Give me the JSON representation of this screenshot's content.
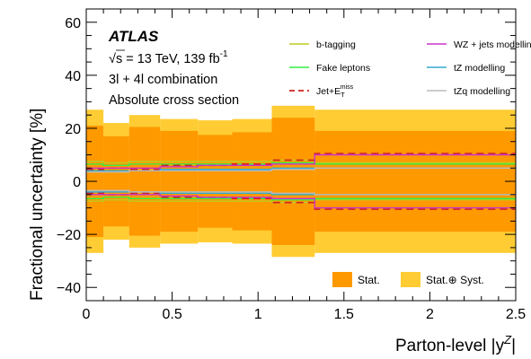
{
  "chart_data": {
    "type": "step",
    "experiment": "ATLAS",
    "energy_line": "√s = 13 TeV, 139 fb",
    "energy_sup": "-1",
    "subtitle_1": "3l + 4l combination",
    "subtitle_2": "Absolute cross section",
    "xlabel_main": "Parton-level |y",
    "xlabel_sup": "Z",
    "xlabel_end": "|",
    "ylabel": "Fractional uncertainty [%]",
    "xlim": [
      0,
      2.5
    ],
    "ylim": [
      -45,
      65
    ],
    "x_ticks": [
      0,
      0.5,
      1,
      1.5,
      2,
      2.5
    ],
    "x_tick_labels": [
      "0",
      "0.5",
      "1",
      "1.5",
      "2",
      "2.5"
    ],
    "y_ticks": [
      -40,
      -20,
      0,
      20,
      40,
      60
    ],
    "y_tick_labels": [
      "−40",
      "−20",
      "0",
      "20",
      "40",
      "60"
    ],
    "bin_edges": [
      0,
      0.1,
      0.25,
      0.43,
      0.65,
      0.85,
      1.08,
      1.33,
      2.5
    ],
    "bands": [
      {
        "name": "Stat.⊕ Syst.",
        "color": "#ffcc33",
        "values": [
          27,
          22,
          25,
          23.5,
          23,
          23.5,
          28.5,
          27
        ]
      },
      {
        "name": "Stat.",
        "color": "#ff9900",
        "values": [
          21,
          17,
          20.5,
          19,
          17.5,
          18.5,
          24,
          19
        ]
      }
    ],
    "series": [
      {
        "name": "b-tagging",
        "color": "#bbcc22",
        "dash": "solid",
        "values": [
          7.5,
          7,
          7.5,
          7.5,
          7.5,
          7.5,
          8,
          7
        ]
      },
      {
        "name": "Fake leptons",
        "color": "#33ee44",
        "dash": "solid",
        "values": [
          6.5,
          6,
          6.5,
          6.5,
          6.5,
          6.5,
          7,
          6.5
        ]
      },
      {
        "name": "Jet+E",
        "name_sub": "T",
        "name_sup": "miss",
        "color": "#cc2222",
        "dash": "dashed",
        "values": [
          4.5,
          5,
          4.5,
          6,
          6,
          6.5,
          8,
          10.5
        ]
      },
      {
        "name": "WZ + jets modelling",
        "color": "#cc33cc",
        "dash": "solid",
        "values": [
          5,
          5,
          5,
          5.5,
          6,
          6,
          6.5,
          10
        ]
      },
      {
        "name": "tZ modelling",
        "color": "#33aacc",
        "dash": "solid",
        "values": [
          4,
          4,
          4,
          4.5,
          4.5,
          4.5,
          5,
          5
        ]
      },
      {
        "name": "tZq modelling",
        "color": "#bbbbbb",
        "dash": "solid",
        "values": [
          3.5,
          3.5,
          4,
          4,
          4,
          4,
          4.5,
          5
        ]
      }
    ]
  }
}
